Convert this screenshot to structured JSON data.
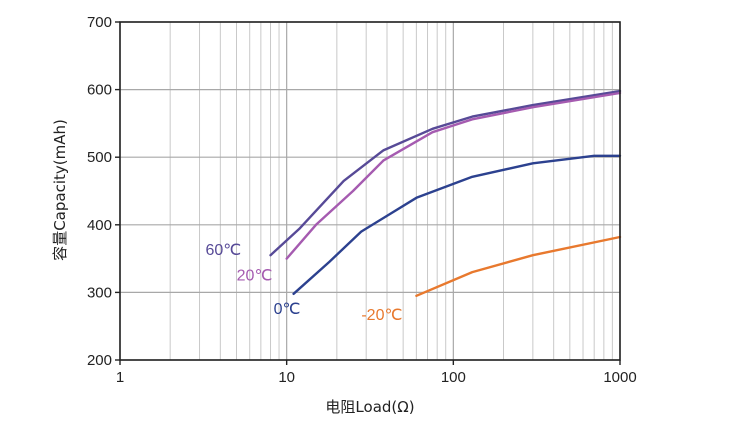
{
  "chart_data": {
    "type": "line",
    "xscale": "log",
    "xlim": [
      1,
      1000
    ],
    "ylim": [
      200,
      700
    ],
    "xlabel": "电阻Load(Ω)",
    "ylabel": "容量Capacity(mAh)",
    "xticks": [
      1,
      10,
      100,
      1000
    ],
    "xtick_labels": [
      "1",
      "10",
      "100",
      "1000"
    ],
    "yticks": [
      200,
      300,
      400,
      500,
      600,
      700
    ],
    "ytick_labels": [
      "200",
      "300",
      "400",
      "500",
      "600",
      "700"
    ],
    "grid": "log-minor-x, major-y",
    "series": [
      {
        "name": "60℃",
        "color": "#574a97",
        "x": [
          8,
          12,
          22,
          38,
          75,
          130,
          300,
          1000
        ],
        "y": [
          355,
          395,
          465,
          510,
          542,
          560,
          577,
          598
        ]
      },
      {
        "name": "20℃",
        "color": "#a55bb0",
        "x": [
          10,
          15,
          25,
          38,
          75,
          130,
          300,
          1000
        ],
        "y": [
          350,
          400,
          450,
          495,
          537,
          556,
          574,
          595
        ]
      },
      {
        "name": "0℃",
        "color": "#2c418f",
        "x": [
          11,
          18,
          28,
          60,
          130,
          300,
          700,
          1000
        ],
        "y": [
          298,
          345,
          390,
          440,
          471,
          491,
          502,
          502
        ]
      },
      {
        "name": "-20℃",
        "color": "#e8792e",
        "x": [
          60,
          130,
          300,
          1000
        ],
        "y": [
          295,
          330,
          355,
          382
        ]
      }
    ]
  }
}
